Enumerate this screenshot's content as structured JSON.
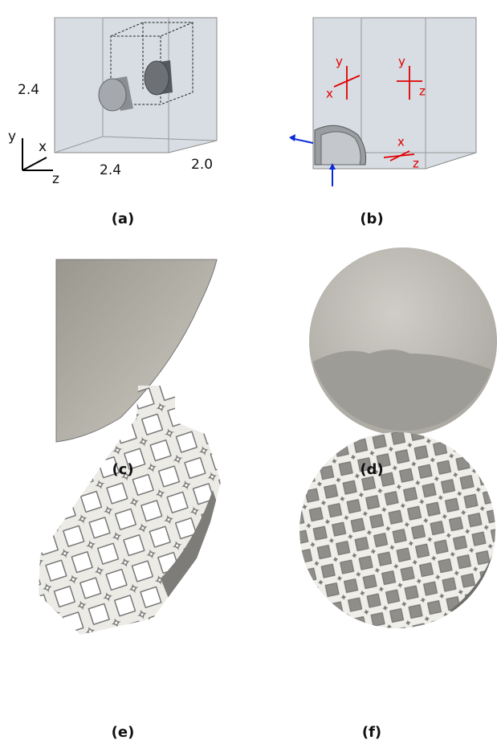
{
  "panels": [
    {
      "label": "(a)",
      "dimensions": [
        "2.4",
        "2.4",
        "2.0"
      ],
      "axes": [
        "y",
        "x",
        "z"
      ]
    },
    {
      "label": "(b)",
      "symmetry_axes": [
        [
          "y",
          "x"
        ],
        [
          "y",
          "z"
        ],
        [
          "x",
          "z"
        ]
      ]
    },
    {
      "label": "(c)"
    },
    {
      "label": "(d)"
    },
    {
      "label": "(e)"
    },
    {
      "label": "(f)"
    }
  ]
}
